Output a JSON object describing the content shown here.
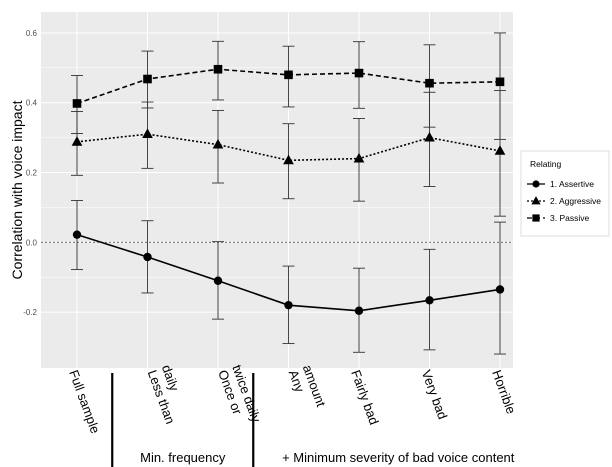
{
  "chart_data": {
    "type": "line",
    "title": "",
    "ylabel": "Correlation with voice impact",
    "xlabel": "",
    "ylim": [
      -0.36,
      0.66
    ],
    "y_ticks": [
      "-0.2",
      "0.0",
      "0.2",
      "0.4",
      "0.6"
    ],
    "y_tick_values": [
      -0.2,
      0.0,
      0.2,
      0.4,
      0.6
    ],
    "grid": true,
    "reference_line": 0.0,
    "categories": [
      "Full sample",
      "Less than daily",
      "Once or twice daily",
      "Any amount",
      "Fairly bad",
      "Very bad",
      "Horrible"
    ],
    "category_lines": [
      [
        "Full sample"
      ],
      [
        "Less than",
        "daily"
      ],
      [
        "Once or",
        "twice daily"
      ],
      [
        "Any",
        "amount"
      ],
      [
        "Fairly bad"
      ],
      [
        "Very bad"
      ],
      [
        "Horrible"
      ]
    ],
    "groups": [
      {
        "label": "Min. frequency",
        "from": 1,
        "to": 2
      },
      {
        "label": "+ Minimum severity of bad voice content",
        "from": 3,
        "to": 6
      }
    ],
    "legend": {
      "title": "Relating",
      "position": "right"
    },
    "series": [
      {
        "name": "1. Assertive",
        "marker": "circle",
        "linestyle": "solid",
        "values": [
          0.022,
          -0.042,
          -0.11,
          -0.18,
          -0.196,
          -0.166,
          -0.135
        ],
        "err_low": [
          -0.078,
          -0.145,
          -0.22,
          -0.29,
          -0.315,
          -0.308,
          -0.32
        ],
        "err_high": [
          0.12,
          0.062,
          0.002,
          -0.068,
          -0.074,
          -0.02,
          0.058
        ]
      },
      {
        "name": "2. Aggressive",
        "marker": "triangle",
        "linestyle": "dotted",
        "values": [
          0.288,
          0.31,
          0.28,
          0.235,
          0.24,
          0.3,
          0.262
        ],
        "err_low": [
          0.192,
          0.212,
          0.17,
          0.125,
          0.118,
          0.16,
          0.075
        ],
        "err_high": [
          0.375,
          0.402,
          0.378,
          0.34,
          0.355,
          0.43,
          0.435
        ]
      },
      {
        "name": "3. Passive",
        "marker": "square",
        "linestyle": "dashed",
        "values": [
          0.398,
          0.468,
          0.496,
          0.48,
          0.485,
          0.456,
          0.46
        ],
        "err_low": [
          0.312,
          0.385,
          0.408,
          0.388,
          0.384,
          0.33,
          0.295
        ],
        "err_high": [
          0.478,
          0.548,
          0.576,
          0.562,
          0.575,
          0.566,
          0.6
        ]
      }
    ],
    "colors": {
      "panel_background": "#ebebeb",
      "gridline": "#ffffff",
      "series": "#000000",
      "errorbar": "#333333"
    }
  }
}
